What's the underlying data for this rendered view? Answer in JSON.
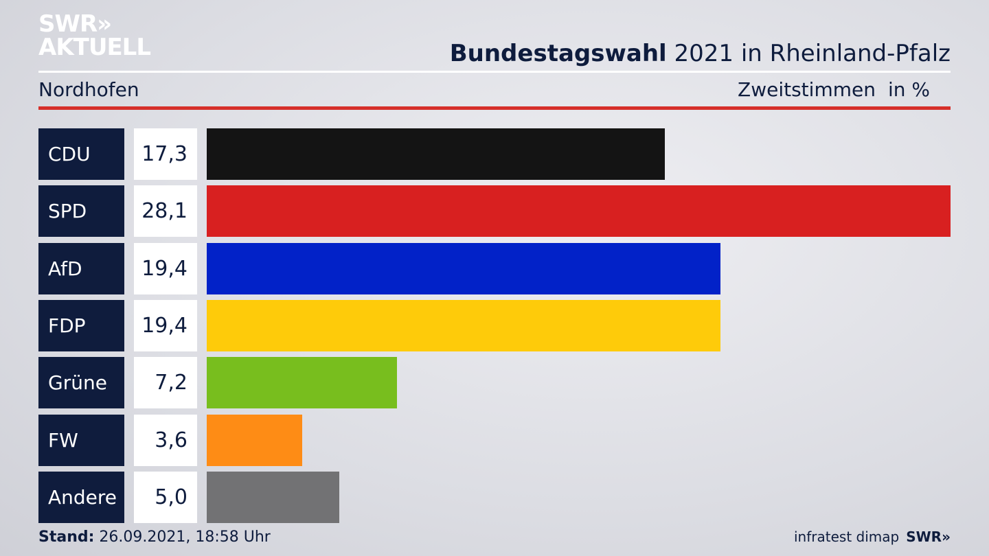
{
  "logo": {
    "line1": "SWR»",
    "line2": "AKTUELL"
  },
  "header": {
    "title_bold": "Bundestagswahl",
    "title_rest": " 2021 in Rheinland-Pfalz",
    "region": "Nordhofen",
    "measure": "Zweitstimmen",
    "unit": "in %"
  },
  "chart_data": {
    "type": "bar",
    "orientation": "horizontal",
    "categories": [
      "CDU",
      "SPD",
      "AfD",
      "FDP",
      "Grüne",
      "FW",
      "Andere"
    ],
    "values": [
      17.3,
      28.1,
      19.4,
      19.4,
      7.2,
      3.6,
      5.0
    ],
    "value_labels": [
      "17,3",
      "28,1",
      "19,4",
      "19,4",
      "7,2",
      "3,6",
      "5,0"
    ],
    "colors": [
      "#141414",
      "#d82020",
      "#0222c8",
      "#fecb0a",
      "#78be1e",
      "#fe8c15",
      "#727274"
    ],
    "xlim": [
      0,
      28.1
    ]
  },
  "footer": {
    "stand_label": "Stand:",
    "stand_value": " 26.09.2021, 18:58 Uhr",
    "source": "infratest dimap",
    "brand": "SWR»"
  }
}
